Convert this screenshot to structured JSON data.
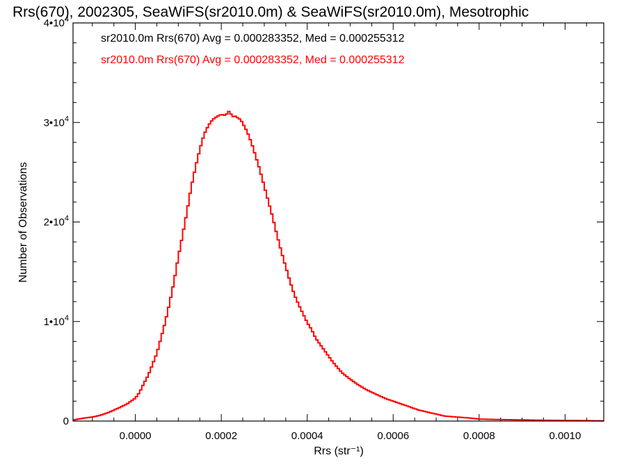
{
  "chart_data": {
    "type": "histogram-step",
    "title": "Rrs(670), 2002305, SeaWiFS(sr2010.0m) & SeaWiFS(sr2010.0m), Mesotrophic",
    "xlabel": "Rrs (str⁻¹)",
    "ylabel": "Number of Observations",
    "xlim": [
      -0.000145,
      0.00109
    ],
    "ylim": [
      0,
      40000
    ],
    "x_ticks": [
      0.0,
      0.0002,
      0.0004,
      0.0006,
      0.0008,
      0.001
    ],
    "x_tick_labels": [
      "0.0000",
      "0.0002",
      "0.0004",
      "0.0006",
      "0.0008",
      "0.0010"
    ],
    "y_ticks": [
      0,
      10000,
      20000,
      30000,
      40000
    ],
    "y_tick_labels": [
      {
        "base": "0",
        "exp": ""
      },
      {
        "base": "1•10",
        "exp": "4"
      },
      {
        "base": "2•10",
        "exp": "4"
      },
      {
        "base": "3•10",
        "exp": "4"
      },
      {
        "base": "4•10",
        "exp": "4"
      }
    ],
    "legend_placement": "top-left",
    "legend": [
      {
        "text": "sr2010.0m Rrs(670) Avg = 0.000283352, Med = 0.000255312",
        "color": "#000000"
      },
      {
        "text": "sr2010.0m Rrs(670) Avg = 0.000283352, Med = 0.000255312",
        "color": "#ff0000"
      }
    ],
    "series": [
      {
        "color": "#ff0000",
        "bin_width": 5e-06,
        "x": [
          -0.000145,
          -0.00012,
          -0.0001,
          -8e-05,
          -6e-05,
          -4e-05,
          -2e-05,
          0.0,
          1e-05,
          2e-05,
          3e-05,
          4e-05,
          5e-05,
          6e-05,
          7e-05,
          8e-05,
          9e-05,
          0.0001,
          0.00011,
          0.00012,
          0.00013,
          0.00014,
          0.00015,
          0.00016,
          0.00017,
          0.00018,
          0.00019,
          0.0002,
          0.00021,
          0.000215,
          0.00022,
          0.000225,
          0.00023,
          0.00024,
          0.000245,
          0.00025,
          0.00026,
          0.00027,
          0.00028,
          0.00029,
          0.0003,
          0.00031,
          0.00032,
          0.00033,
          0.00034,
          0.00035,
          0.00036,
          0.00037,
          0.00038,
          0.00039,
          0.0004,
          0.00041,
          0.00042,
          0.00043,
          0.00044,
          0.00045,
          0.00046,
          0.00047,
          0.00048,
          0.0005,
          0.00052,
          0.00054,
          0.00056,
          0.00058,
          0.0006,
          0.00062,
          0.00064,
          0.00066,
          0.00068,
          0.0007,
          0.00072,
          0.00075,
          0.00078,
          0.0008,
          0.00085,
          0.0009,
          0.00095,
          0.001,
          0.00105,
          0.00109
        ],
        "y": [
          100,
          300,
          400,
          600,
          900,
          1300,
          1700,
          2300,
          2900,
          3800,
          4600,
          5700,
          6800,
          8400,
          10000,
          11900,
          14000,
          16500,
          18700,
          21000,
          23500,
          25500,
          27300,
          28800,
          29700,
          30300,
          30600,
          30800,
          30700,
          31000,
          31200,
          30500,
          30700,
          30400,
          30300,
          29900,
          29100,
          28000,
          26600,
          25200,
          23600,
          22000,
          20400,
          18600,
          17000,
          15500,
          14000,
          12700,
          11700,
          10800,
          9900,
          9200,
          8300,
          7700,
          7100,
          6500,
          5900,
          5400,
          4900,
          4200,
          3600,
          3100,
          2700,
          2300,
          2000,
          1700,
          1400,
          1100,
          900,
          700,
          500,
          400,
          300,
          200,
          150,
          120,
          80,
          60,
          40,
          20
        ]
      }
    ]
  }
}
